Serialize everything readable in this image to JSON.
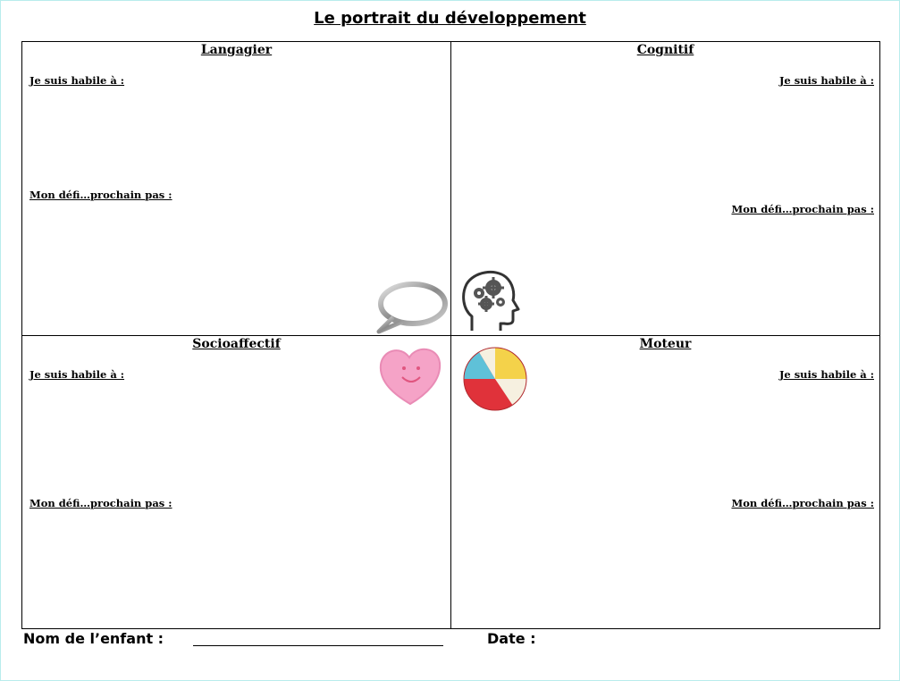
{
  "document": {
    "title": "Le portrait du développement"
  },
  "quadrants": {
    "langagier": {
      "heading": "Langagier",
      "skills_label": "Je suis habile à :",
      "challenge_label": "Mon défi…prochain pas :",
      "icon": "speech-bubble-icon"
    },
    "cognitif": {
      "heading": "Cognitif",
      "skills_label": "Je suis habile à :",
      "challenge_label": "Mon défi…prochain pas :",
      "icon": "head-gears-icon"
    },
    "socioaffectif": {
      "heading": "Socioaffectif",
      "skills_label": "Je suis habile à :",
      "challenge_label": "Mon défi…prochain pas :",
      "icon": "heart-icon"
    },
    "moteur": {
      "heading": "Moteur",
      "skills_label": "Je suis habile à :",
      "challenge_label": "Mon défi…prochain pas :",
      "icon": "beach-ball-icon"
    }
  },
  "footer": {
    "name_label": "Nom de l’enfant :",
    "date_label": "Date :"
  },
  "colors": {
    "frame_border": "#b9ecec",
    "heart": "#f5a3c7",
    "ball_red": "#e0323a",
    "ball_yellow": "#f4d24a",
    "ball_blue": "#5fc1d8"
  }
}
